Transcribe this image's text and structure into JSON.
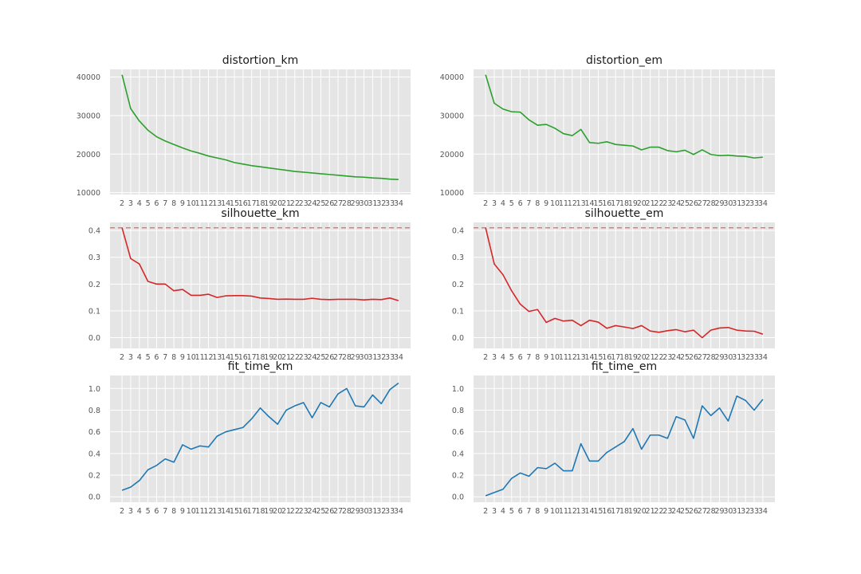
{
  "chart_data": [
    {
      "type": "line",
      "title": "distortion_km",
      "x": [
        2,
        3,
        4,
        5,
        6,
        7,
        8,
        9,
        10,
        11,
        12,
        13,
        14,
        15,
        16,
        17,
        18,
        19,
        20,
        21,
        22,
        23,
        24,
        25,
        26,
        27,
        28,
        29,
        30,
        31,
        32,
        33,
        34
      ],
      "values": [
        40600,
        31800,
        28600,
        26200,
        24500,
        23400,
        22500,
        21600,
        20800,
        20200,
        19500,
        19000,
        18500,
        17800,
        17400,
        17000,
        16700,
        16400,
        16100,
        15800,
        15500,
        15300,
        15100,
        14900,
        14700,
        14500,
        14300,
        14100,
        14000,
        13800,
        13700,
        13500,
        13400
      ],
      "yticks": [
        10000,
        20000,
        30000,
        40000
      ],
      "ylim": [
        9500,
        42000
      ],
      "color": "#2ca02c",
      "grid": true
    },
    {
      "type": "line",
      "title": "distortion_em",
      "x": [
        2,
        3,
        4,
        5,
        6,
        7,
        8,
        9,
        10,
        11,
        12,
        13,
        14,
        15,
        16,
        17,
        18,
        19,
        20,
        21,
        22,
        23,
        24,
        25,
        26,
        27,
        28,
        29,
        30,
        31,
        32,
        33,
        34
      ],
      "values": [
        40600,
        33200,
        31700,
        31000,
        30900,
        28900,
        27500,
        27700,
        26700,
        25300,
        24800,
        26400,
        23000,
        22800,
        23200,
        22500,
        22300,
        22100,
        21100,
        21800,
        21800,
        20900,
        20600,
        21000,
        19900,
        21100,
        19900,
        19600,
        19700,
        19500,
        19400,
        19000,
        19200
      ],
      "yticks": [
        10000,
        20000,
        30000,
        40000
      ],
      "ylim": [
        9500,
        42000
      ],
      "color": "#2ca02c",
      "grid": true
    },
    {
      "type": "line",
      "title": "silhouette_km",
      "x": [
        2,
        3,
        4,
        5,
        6,
        7,
        8,
        9,
        10,
        11,
        12,
        13,
        14,
        15,
        16,
        17,
        18,
        19,
        20,
        21,
        22,
        23,
        24,
        25,
        26,
        27,
        28,
        29,
        30,
        31,
        32,
        33,
        34
      ],
      "values": [
        0.41,
        0.295,
        0.275,
        0.21,
        0.2,
        0.2,
        0.175,
        0.18,
        0.158,
        0.158,
        0.162,
        0.15,
        0.156,
        0.157,
        0.157,
        0.155,
        0.148,
        0.146,
        0.143,
        0.144,
        0.143,
        0.143,
        0.147,
        0.143,
        0.142,
        0.143,
        0.143,
        0.143,
        0.141,
        0.143,
        0.142,
        0.148,
        0.138
      ],
      "reference_line": 0.41,
      "yticks": [
        0.0,
        0.1,
        0.2,
        0.3,
        0.4
      ],
      "ylim": [
        -0.04,
        0.43
      ],
      "color": "#d62728",
      "grid": true
    },
    {
      "type": "line",
      "title": "silhouette_em",
      "x": [
        2,
        3,
        4,
        5,
        6,
        7,
        8,
        9,
        10,
        11,
        12,
        13,
        14,
        15,
        16,
        17,
        18,
        19,
        20,
        21,
        22,
        23,
        24,
        25,
        26,
        27,
        28,
        29,
        30,
        31,
        32,
        33,
        34
      ],
      "values": [
        0.41,
        0.275,
        0.235,
        0.175,
        0.125,
        0.098,
        0.105,
        0.057,
        0.072,
        0.062,
        0.065,
        0.045,
        0.065,
        0.058,
        0.035,
        0.045,
        0.04,
        0.034,
        0.045,
        0.025,
        0.02,
        0.026,
        0.03,
        0.022,
        0.028,
        0.0,
        0.028,
        0.036,
        0.038,
        0.028,
        0.025,
        0.024,
        0.013
      ],
      "reference_line": 0.41,
      "yticks": [
        0.0,
        0.1,
        0.2,
        0.3,
        0.4
      ],
      "ylim": [
        -0.04,
        0.43
      ],
      "color": "#d62728",
      "grid": true
    },
    {
      "type": "line",
      "title": "fit_time_km",
      "x": [
        2,
        3,
        4,
        5,
        6,
        7,
        8,
        9,
        10,
        11,
        12,
        13,
        14,
        15,
        16,
        17,
        18,
        19,
        20,
        21,
        22,
        23,
        24,
        25,
        26,
        27,
        28,
        29,
        30,
        31,
        32,
        33,
        34
      ],
      "values": [
        0.06,
        0.09,
        0.15,
        0.25,
        0.29,
        0.35,
        0.32,
        0.48,
        0.44,
        0.47,
        0.46,
        0.56,
        0.6,
        0.62,
        0.64,
        0.72,
        0.82,
        0.74,
        0.67,
        0.8,
        0.84,
        0.87,
        0.73,
        0.87,
        0.83,
        0.95,
        1.0,
        0.84,
        0.83,
        0.94,
        0.86,
        0.99,
        1.05
      ],
      "yticks": [
        0.0,
        0.2,
        0.4,
        0.6,
        0.8,
        1.0
      ],
      "ylim": [
        -0.05,
        1.12
      ],
      "color": "#1f77b4",
      "grid": true
    },
    {
      "type": "line",
      "title": "fit_time_em",
      "x": [
        2,
        3,
        4,
        5,
        6,
        7,
        8,
        9,
        10,
        11,
        12,
        13,
        14,
        15,
        16,
        17,
        18,
        19,
        20,
        21,
        22,
        23,
        24,
        25,
        26,
        27,
        28,
        29,
        30,
        31,
        32,
        33,
        34
      ],
      "values": [
        0.01,
        0.04,
        0.07,
        0.17,
        0.22,
        0.19,
        0.27,
        0.26,
        0.31,
        0.24,
        0.24,
        0.49,
        0.33,
        0.33,
        0.41,
        0.46,
        0.51,
        0.63,
        0.44,
        0.57,
        0.57,
        0.54,
        0.74,
        0.71,
        0.54,
        0.84,
        0.75,
        0.82,
        0.7,
        0.93,
        0.89,
        0.8,
        0.9
      ],
      "yticks": [
        0.0,
        0.2,
        0.4,
        0.6,
        0.8,
        1.0
      ],
      "ylim": [
        -0.05,
        1.12
      ],
      "color": "#1f77b4",
      "grid": true
    }
  ]
}
